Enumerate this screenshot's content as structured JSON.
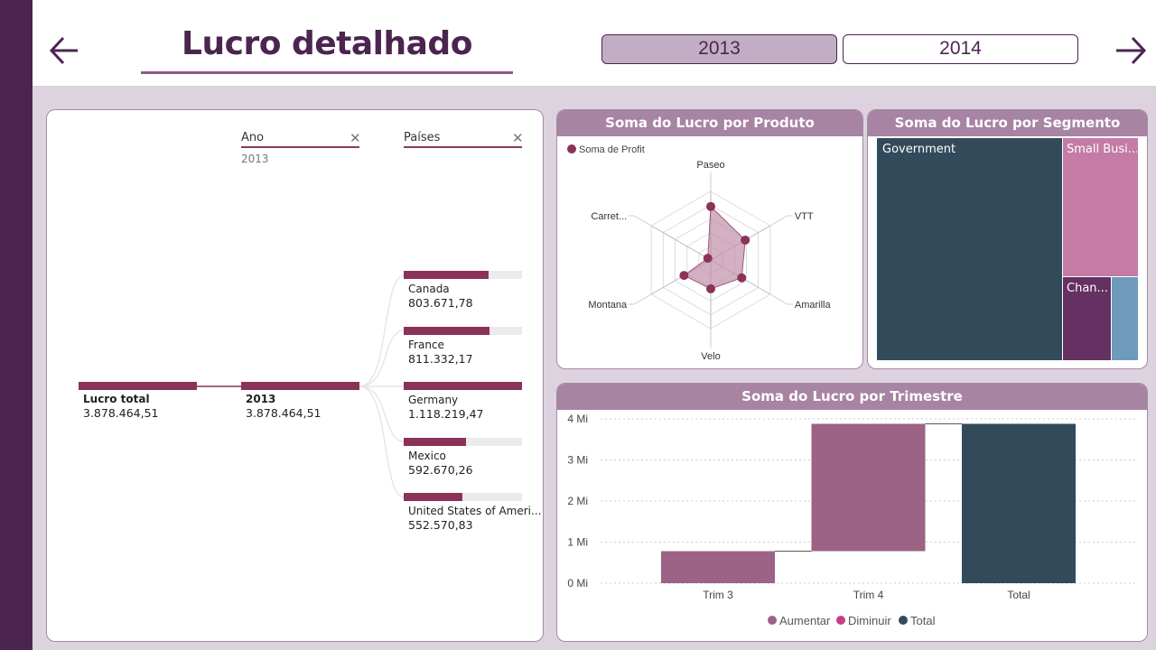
{
  "header": {
    "title": "Lucro detalhado",
    "back_icon": "arrow-left-icon",
    "forward_icon": "arrow-right-icon",
    "year_buttons": [
      {
        "label": "2013",
        "state": "selected"
      },
      {
        "label": "2014",
        "state": "unselected"
      }
    ]
  },
  "colors": {
    "strip": "#4b2550",
    "accent": "#8b3259",
    "header_band": "#a783a4",
    "aumentar": "#9c6384",
    "diminuir": "#c23f86",
    "total": "#334a5a"
  },
  "decomposition": {
    "filters": [
      {
        "label": "Ano",
        "value": "2013"
      },
      {
        "label": "Países",
        "value": ""
      }
    ],
    "root": {
      "label": "Lucro total",
      "value": "3.878.464,51"
    },
    "level1": {
      "label": "2013",
      "value": "3.878.464,51"
    },
    "countries": [
      {
        "name": "Canada",
        "value": "803.671,78",
        "profit": 803671.78
      },
      {
        "name": "France",
        "value": "811.332,17",
        "profit": 811332.17
      },
      {
        "name": "Germany",
        "value": "1.118.219,47",
        "profit": 1118219.47
      },
      {
        "name": "Mexico",
        "value": "592.670,26",
        "profit": 592670.26
      },
      {
        "name": "United States of Ameri...",
        "value": "552.570,83",
        "profit": 552570.83
      }
    ]
  },
  "radar": {
    "title": "Soma do Lucro por Produto",
    "legend": "Soma de Profit",
    "chart_data": {
      "type": "radar",
      "axes": [
        "Paseo",
        "VTT",
        "Amarilla",
        "Velo",
        "Montana",
        "Carret..."
      ],
      "values": [
        0.78,
        0.58,
        0.52,
        0.42,
        0.45,
        0.05
      ]
    }
  },
  "treemap": {
    "title": "Soma do Lucro por Segmento",
    "chart_data": {
      "type": "treemap",
      "segments": [
        {
          "name": "Government",
          "color": "#334a5a"
        },
        {
          "name": "Small Busi...",
          "color": "#c47ba5"
        },
        {
          "name": "Chan...",
          "color": "#653062"
        },
        {
          "name": "",
          "color": "#6e9bbc"
        }
      ]
    }
  },
  "waterfall": {
    "title": "Soma do Lucro por Trimestre",
    "chart_data": {
      "type": "bar",
      "categories": [
        "Trim 3",
        "Trim 4",
        "Total"
      ],
      "steps": [
        {
          "category": "Trim 3",
          "kind": "Aumentar",
          "start": 0,
          "end": 0.78
        },
        {
          "category": "Trim 4",
          "kind": "Aumentar",
          "start": 0.78,
          "end": 3.88
        },
        {
          "category": "Total",
          "kind": "Total",
          "start": 0,
          "end": 3.88
        }
      ],
      "ylim": [
        0,
        4
      ],
      "yticks": [
        "0 Mi",
        "1 Mi",
        "2 Mi",
        "3 Mi",
        "4 Mi"
      ],
      "legend": [
        "Aumentar",
        "Diminuir",
        "Total"
      ]
    }
  }
}
